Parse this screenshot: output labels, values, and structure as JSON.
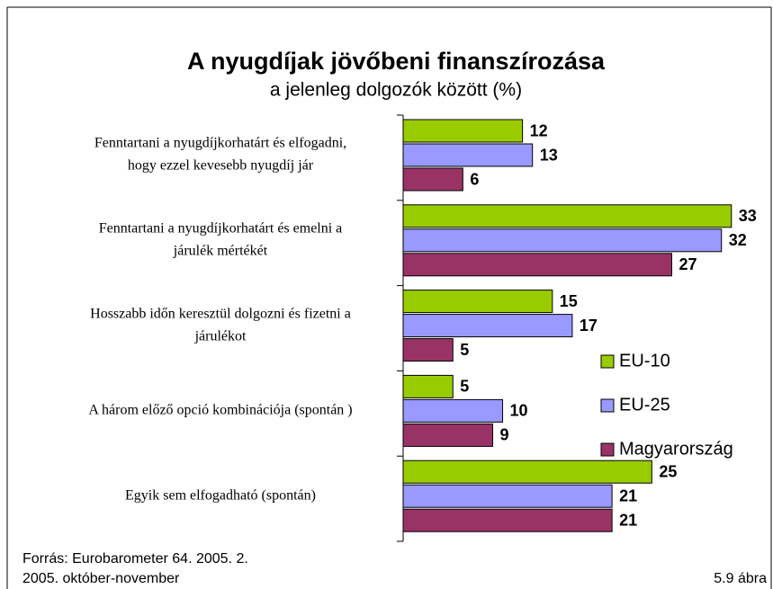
{
  "chart_data": {
    "type": "bar",
    "orientation": "horizontal",
    "title": "A nyugdíjak jövőbeni finanszírozása",
    "subtitle": "a jelenleg dolgozók között (%)",
    "categories": [
      [
        "Fenntartani a nyugdíjkorhatárt és elfogadni,",
        "hogy ezzel kevesebb nyugdíj jár"
      ],
      [
        "Fenntartani a nyugdíjkorhatárt és emelni a",
        "járulék mértékét"
      ],
      [
        "Hosszabb időn keresztül dolgozni és fizetni a",
        "járulékot"
      ],
      [
        "A három előző opció kombinációja (spontán )"
      ],
      [
        "Egyik sem elfogadható (spontán)"
      ]
    ],
    "series": [
      {
        "name": "EU-10",
        "color": "#99cc00",
        "values": [
          12,
          33,
          15,
          5,
          25
        ]
      },
      {
        "name": "EU-25",
        "color": "#9999ff",
        "values": [
          13,
          32,
          17,
          10,
          21
        ]
      },
      {
        "name": "Magyarország",
        "color": "#993366",
        "values": [
          6,
          27,
          5,
          9,
          21
        ]
      }
    ],
    "xlim": [
      0,
      37
    ],
    "footer": {
      "source": "Forrás: Eurobarometer 64. 2005. 2.",
      "date": "2005. október-november",
      "figure": "5.9 ábra"
    }
  }
}
